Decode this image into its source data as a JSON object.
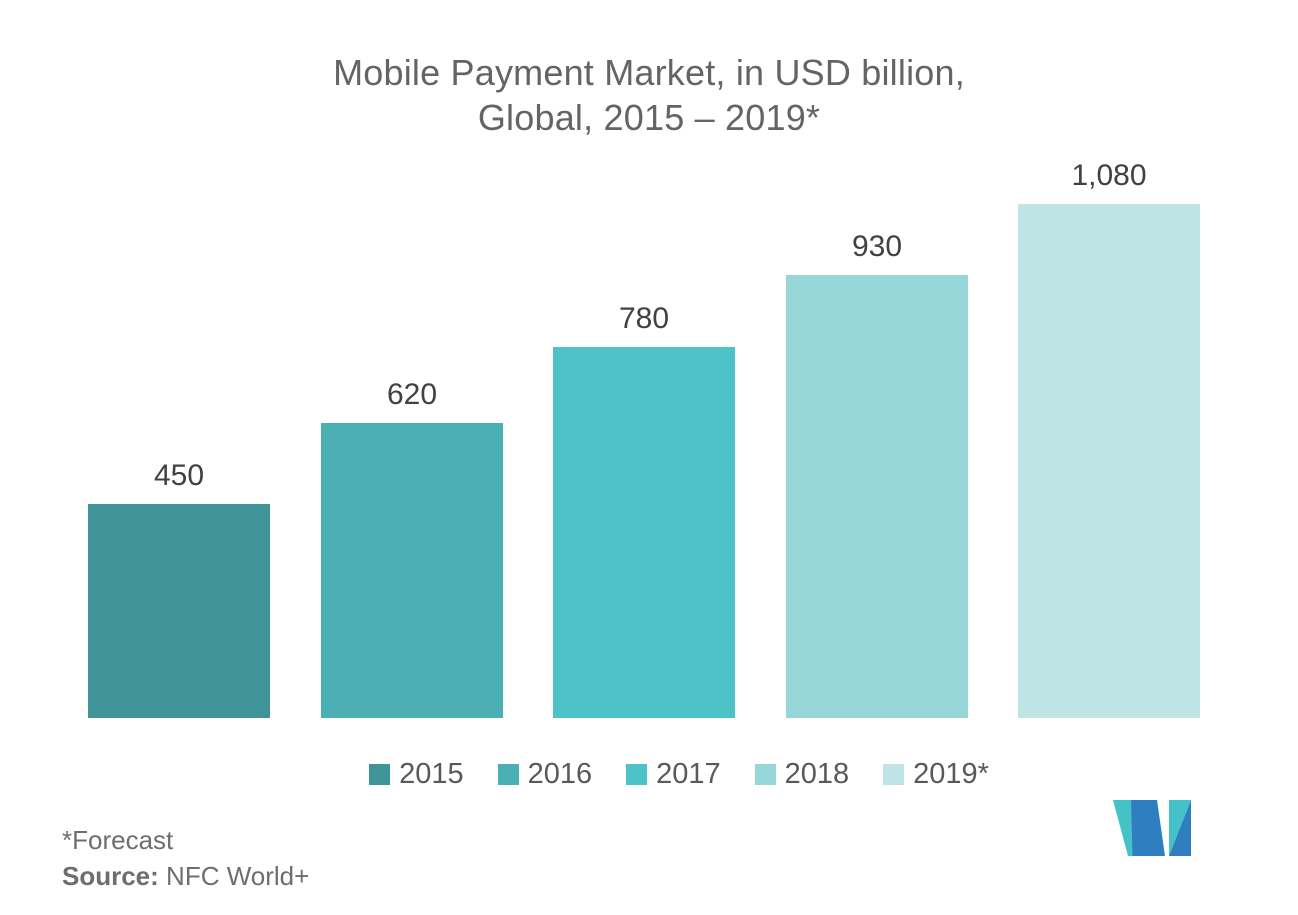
{
  "chart_data": {
    "type": "bar",
    "title": "Mobile Payment Market, in USD billion, Global, 2015 – 2019*",
    "title_lines": [
      "Mobile Payment Market, in USD billion,",
      "Global, 2015 – 2019*"
    ],
    "categories": [
      "2015",
      "2016",
      "2017",
      "2018",
      "2019*"
    ],
    "values": [
      450,
      620,
      780,
      930,
      1080
    ],
    "value_labels": [
      "450",
      "620",
      "780",
      "930",
      "1,080"
    ],
    "bar_colors": [
      "#3E9496",
      "#4AB0B4",
      "#4EC3C7",
      "#96D6D8",
      "#BEE4E5"
    ],
    "xlabel": "",
    "ylabel": "",
    "ylim": [
      0,
      1080
    ],
    "grid": false,
    "axes_visible": false,
    "legend_position": "bottom",
    "value_labels_position": "above-bars"
  },
  "footnote": {
    "forecast_note": "*Forecast",
    "source_label": "Source:",
    "source_value": " NFC World+"
  },
  "logo": {
    "name": "mordor-intelligence-logo",
    "teal": "#45C2C8",
    "blue": "#2E7EC0"
  },
  "colors": {
    "background": "#FFFFFF",
    "title_text": "#626466",
    "value_text": "#414042",
    "legend_text": "#58595B",
    "footnote_text": "#6D6E70"
  }
}
